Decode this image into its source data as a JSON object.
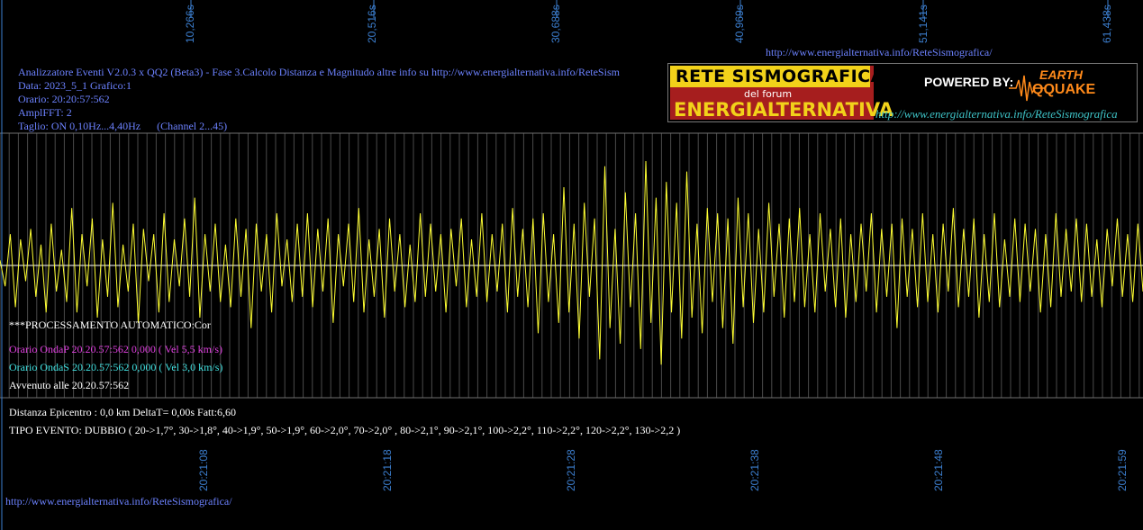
{
  "header": {
    "top_url": "http://www.energialternativa.info/ReteSismografica/",
    "line1": "Analizzatore Eventi V2.0.3 x QQ2 (Beta3) - Fase 3.Calcolo Distanza e Magnitudo altre info su http://www.energialternativa.info/ReteSism",
    "line2": "Data: 2023_5_1 Grafico:1",
    "line3": "Orario: 20:20:57:562",
    "line4": "AmplFFT: 2",
    "line5": "Taglio: ON 0,10Hz...4,40Hz      (Channel 2...45)"
  },
  "logo": {
    "title": "RETE SISMOGRAFICA",
    "subtitle": "del forum",
    "brand": "ENERGIALTERNATIVA",
    "powered": "POWERED BY:",
    "earth": "EARTH",
    "quake": "QQUAKE",
    "url": "http://www.energialternativa.info/ReteSismografica"
  },
  "info": {
    "processing": "***PROCESSAMENTO AUTOMATICO:Cor",
    "onda_p": "Orario OndaP 20.20.57:562  0,000 ( Vel 5,5 km/s)",
    "onda_s": "Orario OndaS 20.20.57:562  0,000 ( Vel 3,0 km/s)",
    "avvenuto": "Avvenuto alle 20.20.57:562",
    "distanza": "Distanza Epicentro : 0,0 km DeltaT= 0,00s  Fatt:6,60",
    "tipo": "TIPO EVENTO: DUBBIO ( 20->1,7°, 30->1,8°, 40->1,9°, 50->1,9°, 60->2,0°, 70->2,0° , 80->2,1°, 90->2,1°, 100->2,2°, 110->2,2°, 120->2,2°, 130->2,2 )"
  },
  "footer_url": "http://www.energialternativa.info/ReteSismografica/",
  "colors": {
    "trace": "#ffff33",
    "baseline": "#ffffff",
    "grid": "#4a4a4a",
    "top_axis": "#3c7fd0",
    "onda_p": "#e040e0",
    "onda_s": "#40e0e0"
  },
  "chart_data": {
    "type": "line",
    "title": "",
    "xlabel": "",
    "ylabel": "",
    "top_axis_ticks": [
      "10,266s",
      "20,516s",
      "30,688s",
      "40,969s",
      "51,141s",
      "61,438s"
    ],
    "bottom_axis_ticks": [
      "20:21:08",
      "20:21:18",
      "20:21:28",
      "20:21:38",
      "20:21:48",
      "20:21:59"
    ],
    "grid": true,
    "series": [
      {
        "values": [
          0.1,
          -0.4,
          0.6,
          -0.8,
          0.5,
          -0.3,
          0.7,
          -0.6,
          0.4,
          -0.9,
          0.8,
          -0.5,
          0.3,
          -0.7,
          1.1,
          -0.9,
          0.6,
          -0.4,
          0.9,
          -1.0,
          0.5,
          -0.6,
          1.2,
          -0.8,
          0.4,
          -0.5,
          0.8,
          -1.1,
          0.7,
          -0.3,
          0.6,
          -0.9,
          1.0,
          -0.7,
          0.5,
          -0.4,
          0.9,
          -0.6,
          1.3,
          -1.0,
          0.6,
          -0.5,
          0.8,
          -0.7,
          0.4,
          -0.8,
          0.9,
          -0.6,
          0.7,
          -1.2,
          0.8,
          -0.5,
          0.6,
          -0.9,
          1.0,
          -0.4,
          0.5,
          -0.7,
          0.8,
          -0.6,
          1.0,
          -0.8,
          0.7,
          -0.5,
          0.9,
          -1.1,
          0.6,
          -0.4,
          0.8,
          -0.7,
          1.1,
          -0.9,
          0.5,
          -0.6,
          0.7,
          -1.0,
          0.9,
          -0.5,
          0.6,
          -0.8,
          0.4,
          -0.7,
          1.0,
          -0.6,
          0.8,
          -0.5,
          0.6,
          -0.9,
          0.7,
          -0.4,
          0.9,
          -0.8,
          0.5,
          -0.6,
          1.0,
          -0.7,
          0.6,
          -0.5,
          0.8,
          -0.9,
          1.1,
          -0.6,
          0.7,
          -0.8,
          0.9,
          -1.3,
          1.0,
          -0.7,
          0.6,
          -1.1,
          1.5,
          -0.9,
          0.8,
          -1.4,
          1.2,
          -0.6,
          0.9,
          -1.8,
          1.9,
          -1.2,
          0.7,
          -1.5,
          1.4,
          -0.8,
          1.0,
          -1.6,
          2.0,
          -1.1,
          1.3,
          -1.9,
          1.6,
          -0.9,
          1.2,
          -1.4,
          1.8,
          -1.0,
          0.8,
          -1.3,
          1.1,
          -0.7,
          1.0,
          -1.2,
          0.9,
          -1.5,
          1.3,
          -0.8,
          1.0,
          -1.1,
          0.7,
          -0.9,
          1.2,
          -0.6,
          0.8,
          -1.0,
          0.9,
          -0.7,
          1.1,
          -0.8,
          0.6,
          -0.9,
          1.0,
          -0.5,
          0.7,
          -0.8,
          0.9,
          -1.0,
          0.6,
          -0.7,
          0.8,
          -0.5,
          1.0,
          -0.9,
          0.7,
          -0.6,
          0.8,
          -1.2,
          0.9,
          -0.6,
          0.7,
          -0.8,
          1.0,
          -0.7,
          0.6,
          -0.9,
          0.8,
          -0.5,
          1.1,
          -0.8,
          0.7,
          -0.6,
          0.9,
          -1.0,
          0.6,
          -0.7,
          1.0,
          -0.8,
          0.5,
          -0.6,
          0.9,
          -0.7,
          0.8,
          -0.5,
          0.7,
          -0.9,
          0.6,
          -0.8,
          1.0,
          -0.6,
          0.7,
          -0.5,
          0.9,
          -0.7,
          0.8,
          -0.6,
          0.5,
          -0.8,
          0.7,
          -0.4,
          0.9,
          -0.6,
          0.6,
          -0.7,
          0.8,
          -0.5
        ]
      }
    ]
  }
}
